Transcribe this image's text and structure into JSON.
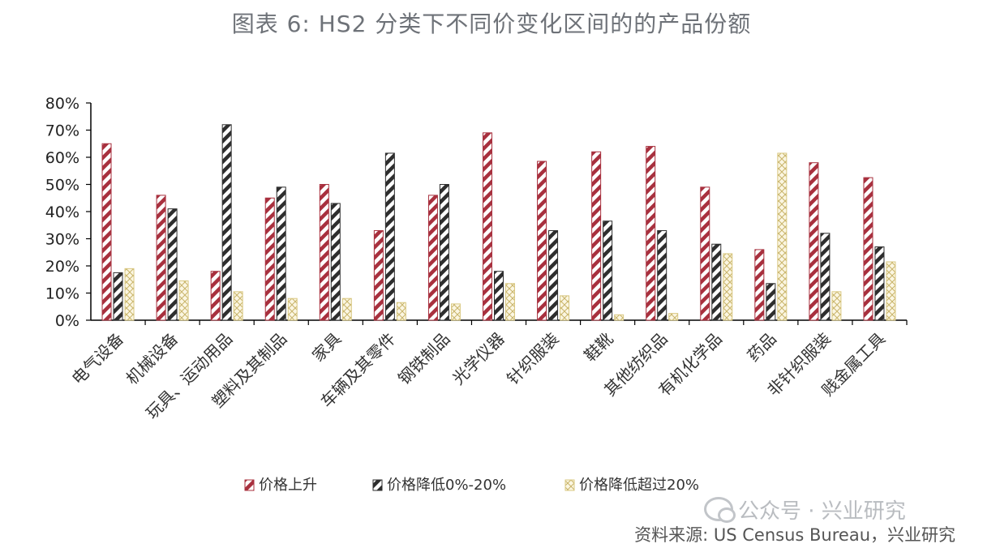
{
  "title": "图表 6:  HS2 分类下不同价变化区间的的产品份额",
  "watermark": "公众号 · 兴业研究",
  "source": "资料来源:  US Census Bureau，兴业研究",
  "colors": {
    "series1": "#a8303e",
    "series2": "#2e2e2e",
    "series3": "#d9c882"
  },
  "chart_data": {
    "type": "bar",
    "categories": [
      "电气设备",
      "机械设备",
      "玩具、运动用品",
      "塑料及其制品",
      "家具",
      "车辆及其零件",
      "钢铁制品",
      "光学仪器",
      "针织服装",
      "鞋靴",
      "其他纺织品",
      "有机化学品",
      "药品",
      "非针织服装",
      "贱金属工具"
    ],
    "series": [
      {
        "name": "价格上升",
        "values": [
          65,
          46,
          18,
          45,
          50,
          33,
          46,
          69,
          58.5,
          62,
          64,
          49,
          26,
          58,
          52.5
        ]
      },
      {
        "name": "价格降低0%-20%",
        "values": [
          17.5,
          41,
          72,
          49,
          43,
          61.5,
          50,
          18,
          33,
          36.5,
          33,
          28,
          13.5,
          32,
          27
        ]
      },
      {
        "name": "价格降低超过20%",
        "values": [
          19,
          14.5,
          10.5,
          8,
          8,
          6.5,
          6,
          13.5,
          9,
          2,
          2.5,
          24.5,
          61.5,
          10.5,
          21.5
        ]
      }
    ],
    "yticks": [
      "0%",
      "10%",
      "20%",
      "30%",
      "40%",
      "50%",
      "60%",
      "70%",
      "80%"
    ],
    "ylim": [
      0,
      80
    ],
    "legend_position": "bottom",
    "grid": false
  }
}
